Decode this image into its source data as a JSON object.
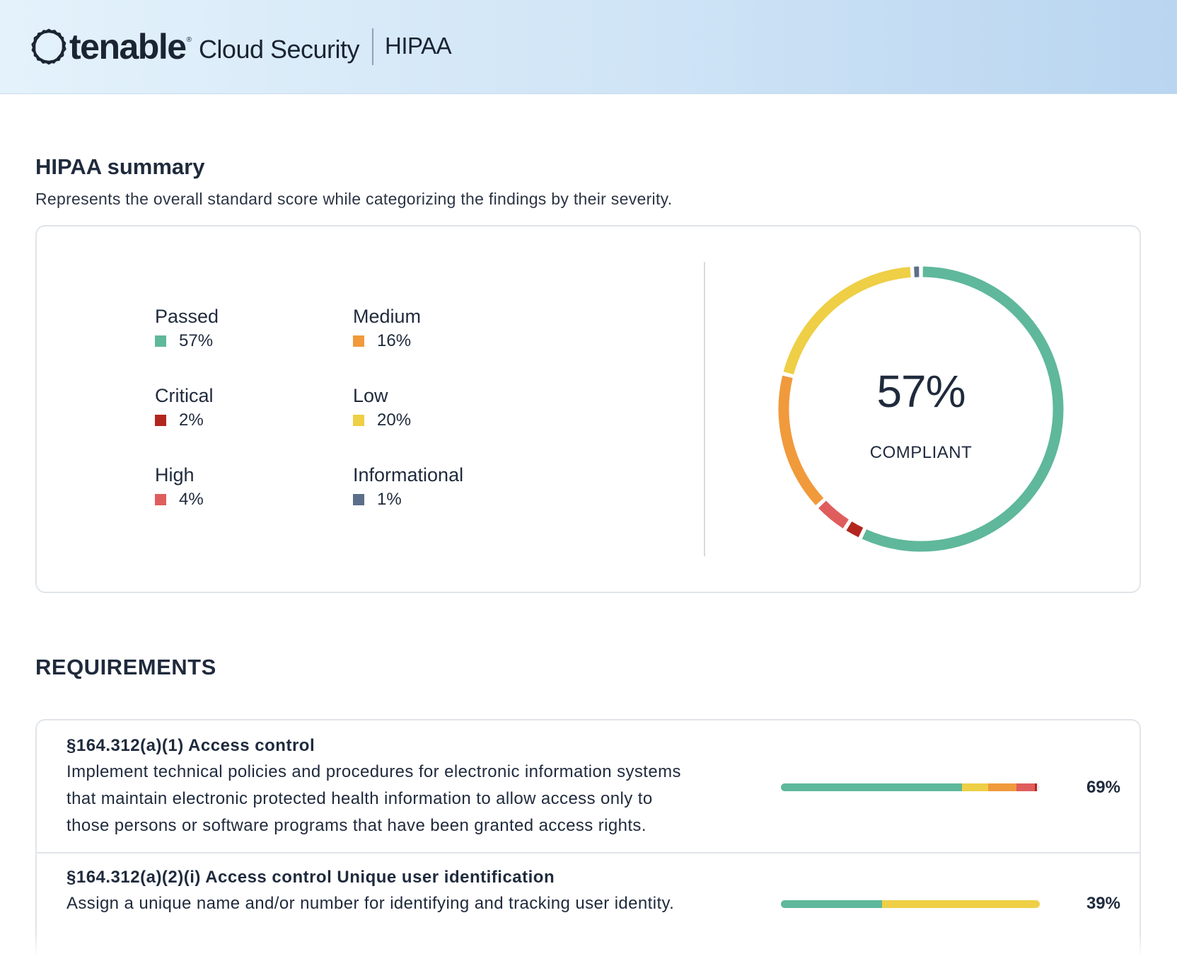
{
  "header": {
    "brand": "tenable",
    "product": "Cloud Security",
    "report": "HIPAA"
  },
  "summary": {
    "title": "HIPAA summary",
    "subtitle": "Represents the overall standard score while categorizing the findings by their severity.",
    "legend": [
      {
        "label": "Passed",
        "value": "57%",
        "color": "#5fb89b"
      },
      {
        "label": "Medium",
        "value": "16%",
        "color": "#f09a3c"
      },
      {
        "label": "Critical",
        "value": "2%",
        "color": "#b3261e"
      },
      {
        "label": "Low",
        "value": "20%",
        "color": "#eecf45"
      },
      {
        "label": "High",
        "value": "4%",
        "color": "#e05d5d"
      },
      {
        "label": "Informational",
        "value": "1%",
        "color": "#5c6e8a"
      }
    ],
    "score": "57%",
    "score_caption": "COMPLIANT"
  },
  "chart_data": {
    "type": "pie",
    "categories": [
      "Passed",
      "Critical",
      "High",
      "Medium",
      "Low",
      "Informational"
    ],
    "values": [
      57,
      2,
      4,
      16,
      20,
      1
    ],
    "colors": [
      "#5fb89b",
      "#b3261e",
      "#e05d5d",
      "#f09a3c",
      "#eecf45",
      "#5c6e8a"
    ]
  },
  "requirements": {
    "title": "REQUIREMENTS",
    "items": [
      {
        "name": "§164.312(a)(1) Access control",
        "description_lines": [
          "Implement technical policies and procedures for electronic information systems",
          "that maintain electronic protected health information to allow access only to",
          "those persons or software programs that have been granted access rights."
        ],
        "score": "69%",
        "breakdown": [
          {
            "severity": "Passed",
            "percent": 70,
            "color": "#5fb89b"
          },
          {
            "severity": "Low",
            "percent": 10,
            "color": "#eecf45"
          },
          {
            "severity": "Medium",
            "percent": 11,
            "color": "#f09a3c"
          },
          {
            "severity": "High",
            "percent": 7,
            "color": "#e05d5d"
          },
          {
            "severity": "Critical",
            "percent": 1,
            "color": "#b3261e"
          }
        ]
      },
      {
        "name": "§164.312(a)(2)(i) Access control Unique user identification",
        "description_lines": [
          "Assign a unique name and/or number for identifying and tracking user identity."
        ],
        "score": "39%",
        "breakdown": [
          {
            "severity": "Passed",
            "percent": 39,
            "color": "#5fb89b"
          },
          {
            "severity": "Low",
            "percent": 61,
            "color": "#eecf45"
          }
        ]
      }
    ]
  }
}
